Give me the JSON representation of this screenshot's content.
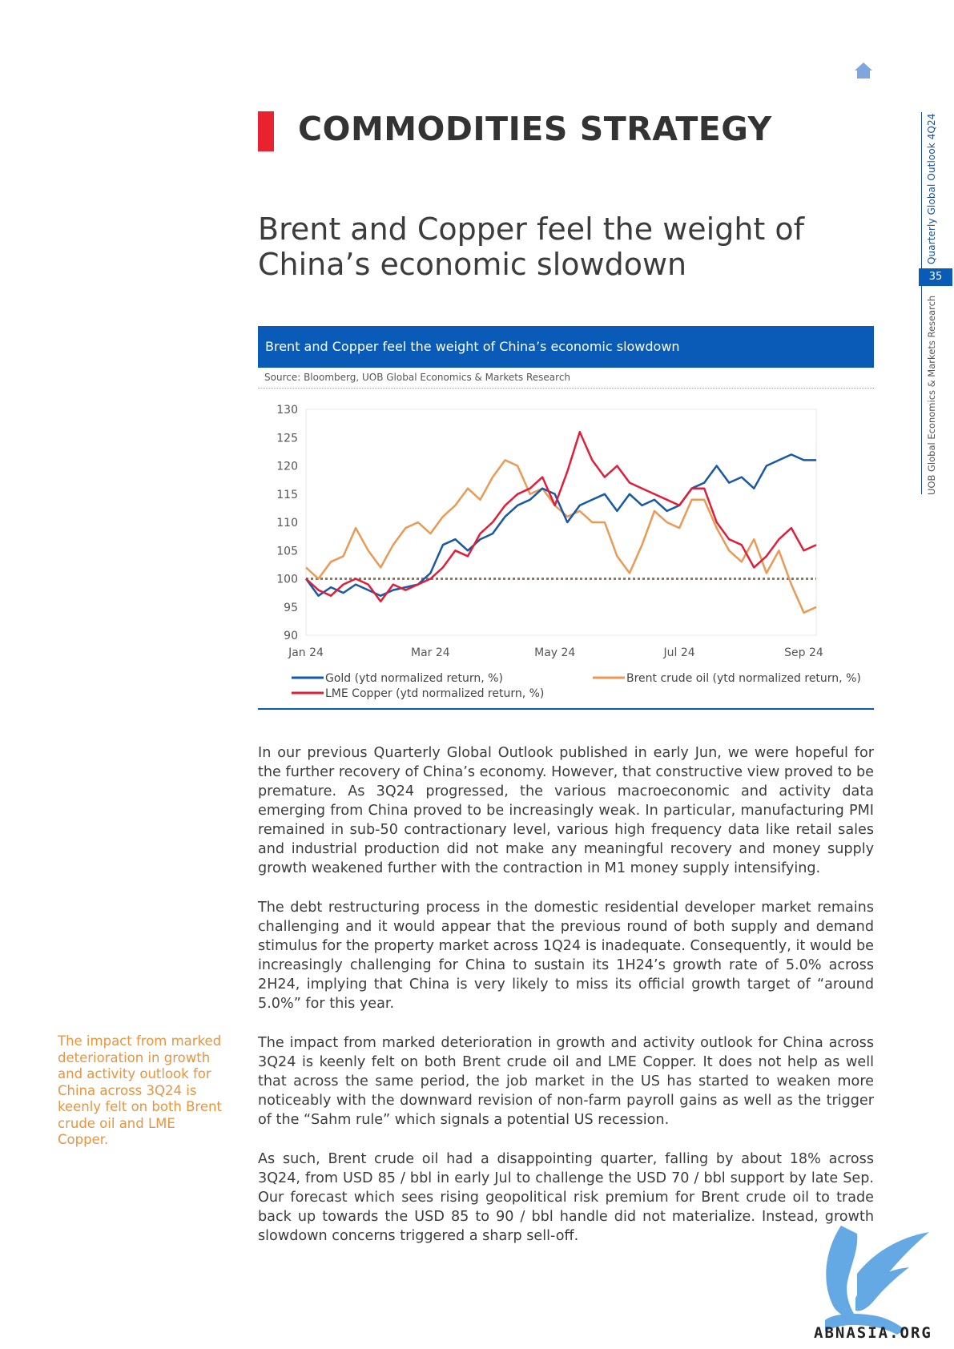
{
  "side_panel": {
    "publication": "Quarterly Global Outlook 4Q24",
    "page_number": "35",
    "publisher": "UOB Global Economics & Markets Research"
  },
  "section_title": "COMMODITIES STRATEGY",
  "headline": "Brent and Copper feel the weight of China’s economic slowdown",
  "chart": {
    "banner_title": "Brent and Copper feel the weight of China’s economic slowdown",
    "source": "Source: Bloomberg, UOB Global Economics & Markets Research",
    "legend": {
      "gold": "Gold (ytd normalized return, %)",
      "copper": "LME Copper (ytd normalized return, %)",
      "brent": "Brent crude oil (ytd normalized return, %)"
    }
  },
  "chart_data": {
    "type": "line",
    "title": "Brent and Copper feel the weight of China’s economic slowdown",
    "x_tick_labels": [
      "Jan 24",
      "Mar 24",
      "May 24",
      "Jul 24",
      "Sep 24"
    ],
    "x_ticks_at": [
      0,
      2,
      4,
      6,
      8
    ],
    "xlim": [
      0,
      8.2
    ],
    "ylim": [
      90,
      130
    ],
    "y_ticks": [
      130,
      125,
      120,
      115,
      110,
      105,
      100,
      95,
      90
    ],
    "baseline": 100,
    "colors": {
      "gold": "#1758a8",
      "brent": "#ea9a54",
      "copper": "#e01e3a",
      "baseline": "#8a7a66"
    },
    "series": [
      {
        "key": "gold",
        "name": "Gold (ytd normalized return, %)",
        "x": [
          0,
          0.2,
          0.4,
          0.6,
          0.8,
          1.0,
          1.2,
          1.4,
          1.6,
          1.8,
          2.0,
          2.2,
          2.4,
          2.6,
          2.8,
          3.0,
          3.2,
          3.4,
          3.6,
          3.8,
          4.0,
          4.2,
          4.4,
          4.6,
          4.8,
          5.0,
          5.2,
          5.4,
          5.6,
          5.8,
          6.0,
          6.2,
          6.4,
          6.6,
          6.8,
          7.0,
          7.2,
          7.4,
          7.6,
          7.8,
          8.0,
          8.2
        ],
        "y": [
          100,
          97,
          98.5,
          97.5,
          99,
          98,
          97,
          98,
          98.5,
          99,
          101,
          106,
          107,
          105,
          107,
          108,
          111,
          113,
          114,
          116,
          115,
          110,
          113,
          114,
          115,
          112,
          115,
          113,
          114,
          112,
          113,
          116,
          117,
          120,
          117,
          118,
          116,
          120,
          121,
          122,
          121,
          121
        ]
      },
      {
        "key": "brent",
        "name": "Brent crude oil (ytd normalized return, %)",
        "x": [
          0,
          0.2,
          0.4,
          0.6,
          0.8,
          1.0,
          1.2,
          1.4,
          1.6,
          1.8,
          2.0,
          2.2,
          2.4,
          2.6,
          2.8,
          3.0,
          3.2,
          3.4,
          3.6,
          3.8,
          4.0,
          4.2,
          4.4,
          4.6,
          4.8,
          5.0,
          5.2,
          5.4,
          5.6,
          5.8,
          6.0,
          6.2,
          6.4,
          6.6,
          6.8,
          7.0,
          7.2,
          7.4,
          7.6,
          7.8,
          8.0,
          8.2
        ],
        "y": [
          102,
          100,
          103,
          104,
          109,
          105,
          102,
          106,
          109,
          110,
          108,
          111,
          113,
          116,
          114,
          118,
          121,
          120,
          115,
          116,
          113,
          111,
          112,
          110,
          110,
          104,
          101,
          106,
          112,
          110,
          109,
          114,
          114,
          109,
          105,
          103,
          107,
          101,
          105,
          99,
          94,
          95
        ]
      },
      {
        "key": "copper",
        "name": "LME Copper (ytd normalized return, %)",
        "x": [
          0,
          0.2,
          0.4,
          0.6,
          0.8,
          1.0,
          1.2,
          1.4,
          1.6,
          1.8,
          2.0,
          2.2,
          2.4,
          2.6,
          2.8,
          3.0,
          3.2,
          3.4,
          3.6,
          3.8,
          4.0,
          4.2,
          4.4,
          4.6,
          4.8,
          5.0,
          5.2,
          5.4,
          5.6,
          5.8,
          6.0,
          6.2,
          6.4,
          6.6,
          6.8,
          7.0,
          7.2,
          7.4,
          7.6,
          7.8,
          8.0,
          8.2
        ],
        "y": [
          100,
          98,
          97,
          99,
          100,
          99,
          96,
          99,
          98,
          99,
          100,
          102,
          105,
          104,
          108,
          110,
          113,
          115,
          116,
          118,
          113,
          119,
          126,
          121,
          118,
          120,
          117,
          116,
          115,
          114,
          113,
          116,
          116,
          110,
          107,
          106,
          102,
          104,
          107,
          109,
          105,
          106
        ]
      }
    ]
  },
  "body_paragraphs": [
    "In our previous Quarterly Global Outlook published in early Jun, we were hopeful for the further recovery of China’s economy. However, that constructive view proved to be premature. As 3Q24 progressed, the various macroeconomic and activity data emerging from China proved to be increasingly weak. In particular, manufacturing PMI remained in sub-50 contractionary level, various high frequency data like retail sales and industrial production did not make any meaningful recovery and money supply growth weakened further with the contraction in M1 money supply intensifying.",
    "The debt restructuring process in the domestic residential developer market remains challenging and it would appear that the previous round of both supply and demand stimulus for the property market across 1Q24 is inadequate. Consequently, it would be increasingly challenging for China to sustain its 1H24’s growth rate of 5.0% across 2H24, implying that China is very likely to miss its official growth target of “around 5.0%” for this year.",
    "The impact from marked deterioration in growth and activity outlook for China across 3Q24 is keenly felt on both Brent crude oil and LME Copper. It does not help as well that across the same period, the job market in the US has started to weaken more noticeably with the downward revision of non-farm payroll gains as well as the trigger of the “Sahm rule” which signals a potential US recession.",
    "As such, Brent crude oil had a disappointing quarter, falling by about 18% across 3Q24, from USD 85 / bbl in early Jul to challenge the USD 70 / bbl support by late Sep. Our forecast which sees rising geopolitical risk premium for Brent crude oil to trade back up towards the USD 85 to 90 / bbl handle did not materialize. Instead, growth slowdown concerns triggered a sharp sell-off."
  ],
  "sidenote": "The impact from marked deterioration in growth and activity outlook for China across 3Q24 is keenly felt on both Brent crude oil and LME Copper.",
  "watermark": {
    "text": "ABNASIA.ORG",
    "color": "#3a8fd6"
  }
}
